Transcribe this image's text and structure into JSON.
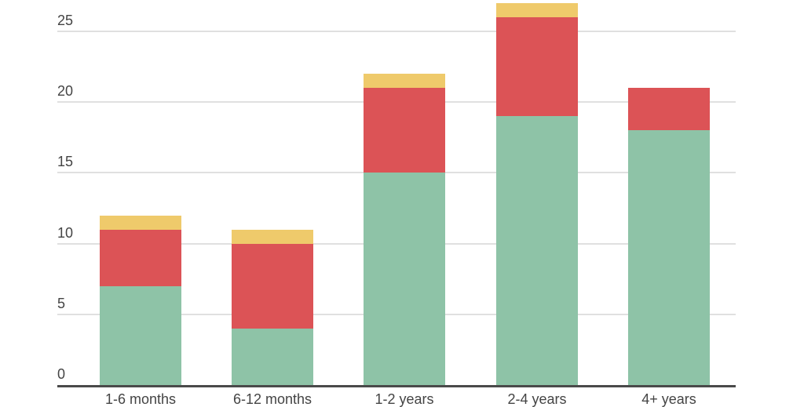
{
  "chart_data": {
    "type": "bar",
    "stacked": true,
    "title": "",
    "xlabel": "",
    "ylabel": "",
    "categories": [
      "1-6 months",
      "6-12 months",
      "1-2 years",
      "2-4 years",
      "4+ years"
    ],
    "series": [
      {
        "name": "green",
        "color": "#8ec3a7",
        "values": [
          7,
          4,
          15,
          19,
          18
        ]
      },
      {
        "name": "red",
        "color": "#dc5356",
        "values": [
          4,
          6,
          6,
          7,
          3
        ]
      },
      {
        "name": "yellow",
        "color": "#efca6b",
        "values": [
          1,
          1,
          1,
          1,
          0
        ]
      }
    ],
    "totals": [
      12,
      11,
      22,
      27,
      21
    ],
    "yticks": [
      0,
      5,
      10,
      15,
      20,
      25
    ],
    "ylim": [
      0,
      27
    ],
    "grid": true,
    "legend": "none"
  },
  "axis": {
    "yticks": [
      "0",
      "5",
      "10",
      "15",
      "20",
      "25"
    ]
  },
  "colors": {
    "grid": "#e0e0e0",
    "baseline": "#4a4a4a",
    "text": "#444444"
  }
}
